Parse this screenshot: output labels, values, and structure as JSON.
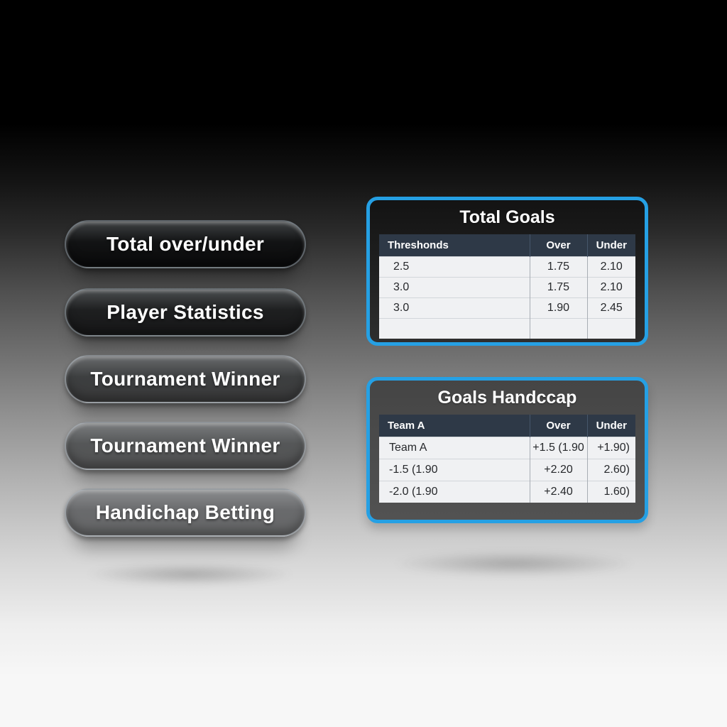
{
  "colors": {
    "accent_border": "#25a0e4",
    "table_header_bg": "#2e3947",
    "table_row_bg": "#f0f1f3"
  },
  "menu": {
    "buttons": [
      {
        "label": "Total over/under"
      },
      {
        "label": "Player Statistics"
      },
      {
        "label": "Tournament Winner"
      },
      {
        "label": "Tournament Winner"
      },
      {
        "label": "Handichap Betting"
      }
    ]
  },
  "panels": [
    {
      "title": "Total Goals",
      "columns": [
        "Threshonds",
        "Over",
        "Under"
      ],
      "rows": [
        [
          "2.5",
          "1.75",
          "2.10"
        ],
        [
          "3.0",
          "1.75",
          "2.10"
        ],
        [
          "3.0",
          "1.90",
          "2.45"
        ],
        [
          "",
          "",
          ""
        ]
      ]
    },
    {
      "title": "Goals Handccap",
      "columns": [
        "Team A",
        "Over",
        "Under"
      ],
      "rows": [
        [
          "Team A",
          "+1.5 (1.90",
          "+1.90)"
        ],
        [
          "-1.5 (1.90",
          "+2.20",
          "2.60)"
        ],
        [
          "-2.0 (1.90",
          "+2.40",
          "1.60)"
        ]
      ]
    }
  ]
}
